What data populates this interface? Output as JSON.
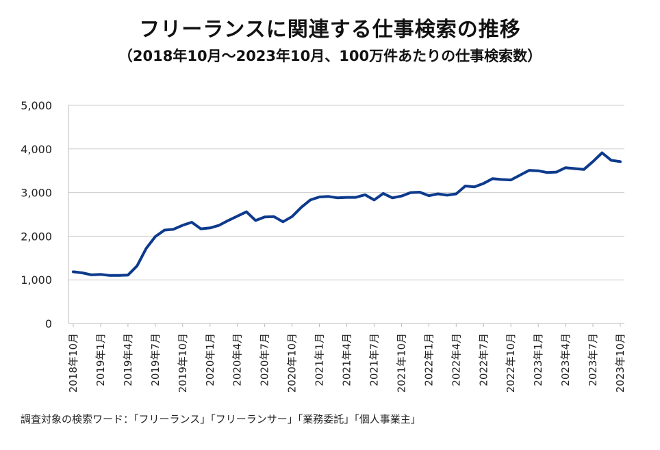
{
  "chart_data": {
    "type": "line",
    "title": "フリーランスに関連する仕事検索の推移",
    "subtitle": "（2018年10月～2023年10月、100万件あたりの仕事検索数）",
    "xlabel": "",
    "ylabel": "",
    "ylim": [
      0,
      5000
    ],
    "yticks": [
      0,
      1000,
      2000,
      3000,
      4000,
      5000
    ],
    "ytick_labels": [
      "0",
      "1,000",
      "2,000",
      "3,000",
      "4,000",
      "5,000"
    ],
    "grid": true,
    "x_tick_labels": [
      "2018年10月",
      "2019年1月",
      "2019年4月",
      "2019年7月",
      "2019年10月",
      "2020年1月",
      "2020年4月",
      "2020年7月",
      "2020年10月",
      "2021年1月",
      "2021年4月",
      "2021年7月",
      "2021年10月",
      "2022年1月",
      "2022年4月",
      "2022年7月",
      "2022年10月",
      "2023年1月",
      "2023年4月",
      "2023年7月",
      "2023年10月"
    ],
    "series": [
      {
        "name": "100万件あたりの仕事検索数",
        "color": "#0d3a8c",
        "values": [
          1185,
          1160,
          1115,
          1125,
          1100,
          1100,
          1110,
          1320,
          1720,
          1990,
          2140,
          2160,
          2250,
          2320,
          2170,
          2190,
          2250,
          2360,
          2460,
          2560,
          2360,
          2440,
          2450,
          2330,
          2450,
          2660,
          2830,
          2900,
          2910,
          2880,
          2890,
          2890,
          2950,
          2830,
          2980,
          2880,
          2920,
          3000,
          3010,
          2930,
          2970,
          2940,
          2970,
          3150,
          3130,
          3210,
          3320,
          3300,
          3290,
          3400,
          3510,
          3500,
          3460,
          3470,
          3570,
          3550,
          3530,
          3710,
          3910,
          3740,
          3710
        ]
      }
    ]
  },
  "footer": {
    "source": "調査対象の検索ワード：「フリーランス」「フリーランサー」「業務委託」「個人事業主」"
  }
}
